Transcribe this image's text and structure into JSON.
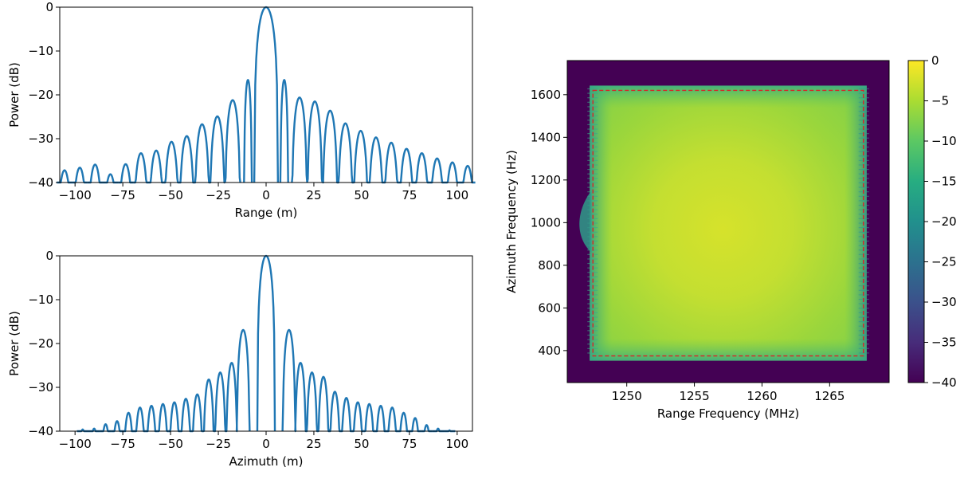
{
  "chart_data": [
    {
      "type": "line",
      "xlabel": "Range (m)",
      "ylabel": "Power (dB)",
      "xlim": [
        -108,
        108
      ],
      "ylim": [
        -40,
        0
      ],
      "xticks": [
        -100,
        -75,
        -50,
        -25,
        0,
        25,
        50,
        75,
        100
      ],
      "xtick_labels": [
        "−100",
        "−75",
        "−50",
        "−25",
        "0",
        "25",
        "50",
        "75",
        "100"
      ],
      "yticks": [
        0,
        -10,
        -20,
        -30,
        -40
      ],
      "ytick_labels": [
        "0",
        "−10",
        "−20",
        "−30",
        "−40"
      ],
      "color": "#1f77b4",
      "main_lobe_halfwidth": 6.2,
      "sidelobes": [
        {
          "x": -105.5,
          "y": -37.2
        },
        {
          "x": -97.5,
          "y": -36.6
        },
        {
          "x": -89.5,
          "y": -35.9
        },
        {
          "x": -81.5,
          "y": -38.1
        },
        {
          "x": -73.5,
          "y": -35.8
        },
        {
          "x": -65.5,
          "y": -33.3
        },
        {
          "x": -57.5,
          "y": -32.7
        },
        {
          "x": -49.5,
          "y": -30.7
        },
        {
          "x": -41.5,
          "y": -29.4
        },
        {
          "x": -33.5,
          "y": -26.7
        },
        {
          "x": -25.5,
          "y": -24.9
        },
        {
          "x": -17.5,
          "y": -21.2
        },
        {
          "x": -9.5,
          "y": -16.6
        },
        {
          "x": 9.5,
          "y": -16.6
        },
        {
          "x": 17.5,
          "y": -20.6
        },
        {
          "x": 25.5,
          "y": -21.5
        },
        {
          "x": 33.5,
          "y": -23.6
        },
        {
          "x": 41.5,
          "y": -26.5
        },
        {
          "x": 49.5,
          "y": -28.2
        },
        {
          "x": 57.5,
          "y": -29.7
        },
        {
          "x": 65.5,
          "y": -30.9
        },
        {
          "x": 73.5,
          "y": -32.3
        },
        {
          "x": 81.5,
          "y": -33.3
        },
        {
          "x": 89.5,
          "y": -34.5
        },
        {
          "x": 97.5,
          "y": -35.4
        },
        {
          "x": 105.5,
          "y": -36.2
        }
      ]
    },
    {
      "type": "line",
      "xlabel": "Azimuth (m)",
      "ylabel": "Power (dB)",
      "xlim": [
        -108,
        108
      ],
      "ylim": [
        -40,
        0
      ],
      "xticks": [
        -100,
        -75,
        -50,
        -25,
        0,
        25,
        50,
        75,
        100
      ],
      "xtick_labels": [
        "−100",
        "−75",
        "−50",
        "−25",
        "0",
        "25",
        "50",
        "75",
        "100"
      ],
      "yticks": [
        0,
        -10,
        -20,
        -30,
        -40
      ],
      "ytick_labels": [
        "0",
        "−10",
        "−20",
        "−30",
        "−40"
      ],
      "color": "#1f77b4",
      "main_lobe_halfwidth": 4.6,
      "sidelobes": [
        {
          "x": -96,
          "y": -39.6
        },
        {
          "x": -90,
          "y": -39.4
        },
        {
          "x": -84,
          "y": -38.4
        },
        {
          "x": -78,
          "y": -37.7
        },
        {
          "x": -72,
          "y": -35.8
        },
        {
          "x": -66,
          "y": -34.6
        },
        {
          "x": -60,
          "y": -34.2
        },
        {
          "x": -54,
          "y": -33.8
        },
        {
          "x": -48,
          "y": -33.4
        },
        {
          "x": -42,
          "y": -32.6
        },
        {
          "x": -36,
          "y": -31.6
        },
        {
          "x": -30,
          "y": -28.2
        },
        {
          "x": -24,
          "y": -26.6
        },
        {
          "x": -18,
          "y": -24.4
        },
        {
          "x": -12,
          "y": -16.9
        },
        {
          "x": 12,
          "y": -16.9
        },
        {
          "x": 18,
          "y": -24.4
        },
        {
          "x": 24,
          "y": -26.6
        },
        {
          "x": 30,
          "y": -27.6
        },
        {
          "x": 36,
          "y": -31.0
        },
        {
          "x": 42,
          "y": -32.4
        },
        {
          "x": 48,
          "y": -33.4
        },
        {
          "x": 54,
          "y": -33.8
        },
        {
          "x": 60,
          "y": -34.2
        },
        {
          "x": 66,
          "y": -34.6
        },
        {
          "x": 72,
          "y": -35.8
        },
        {
          "x": 78,
          "y": -37.0
        },
        {
          "x": 84,
          "y": -38.6
        },
        {
          "x": 90,
          "y": -39.4
        },
        {
          "x": 96,
          "y": -39.8
        }
      ]
    },
    {
      "type": "heatmap",
      "xlabel": "Range Frequency (MHz)",
      "ylabel": "Azimuth Frequency (Hz)",
      "xlim": [
        1245.6,
        1269.4
      ],
      "ylim": [
        250,
        1760
      ],
      "xticks": [
        1250,
        1255,
        1260,
        1265
      ],
      "xtick_labels": [
        "1250",
        "1255",
        "1260",
        "1265"
      ],
      "yticks": [
        400,
        600,
        800,
        1000,
        1200,
        1400,
        1600
      ],
      "ytick_labels": [
        "400",
        "600",
        "800",
        "1000",
        "1200",
        "1400",
        "1600"
      ],
      "value_range": [
        -40,
        0
      ],
      "background_value": -40,
      "peak_value": -2,
      "peak_center": [
        1257.5,
        1000
      ],
      "support_region": {
        "x": [
          1247.5,
          1267.5
        ],
        "y": [
          375,
          1620
        ]
      },
      "dashed_box": {
        "x": [
          1247.5,
          1267.5
        ],
        "y": [
          375,
          1620
        ],
        "color": "#d62728"
      },
      "colormap": "viridis",
      "colorbar": {
        "ticks": [
          0,
          -5,
          -10,
          -15,
          -20,
          -25,
          -30,
          -35,
          -40
        ],
        "tick_labels": [
          "0",
          "−5",
          "−10",
          "−15",
          "−20",
          "−25",
          "−30",
          "−35",
          "−40"
        ],
        "range": [
          -40,
          0
        ]
      }
    }
  ]
}
